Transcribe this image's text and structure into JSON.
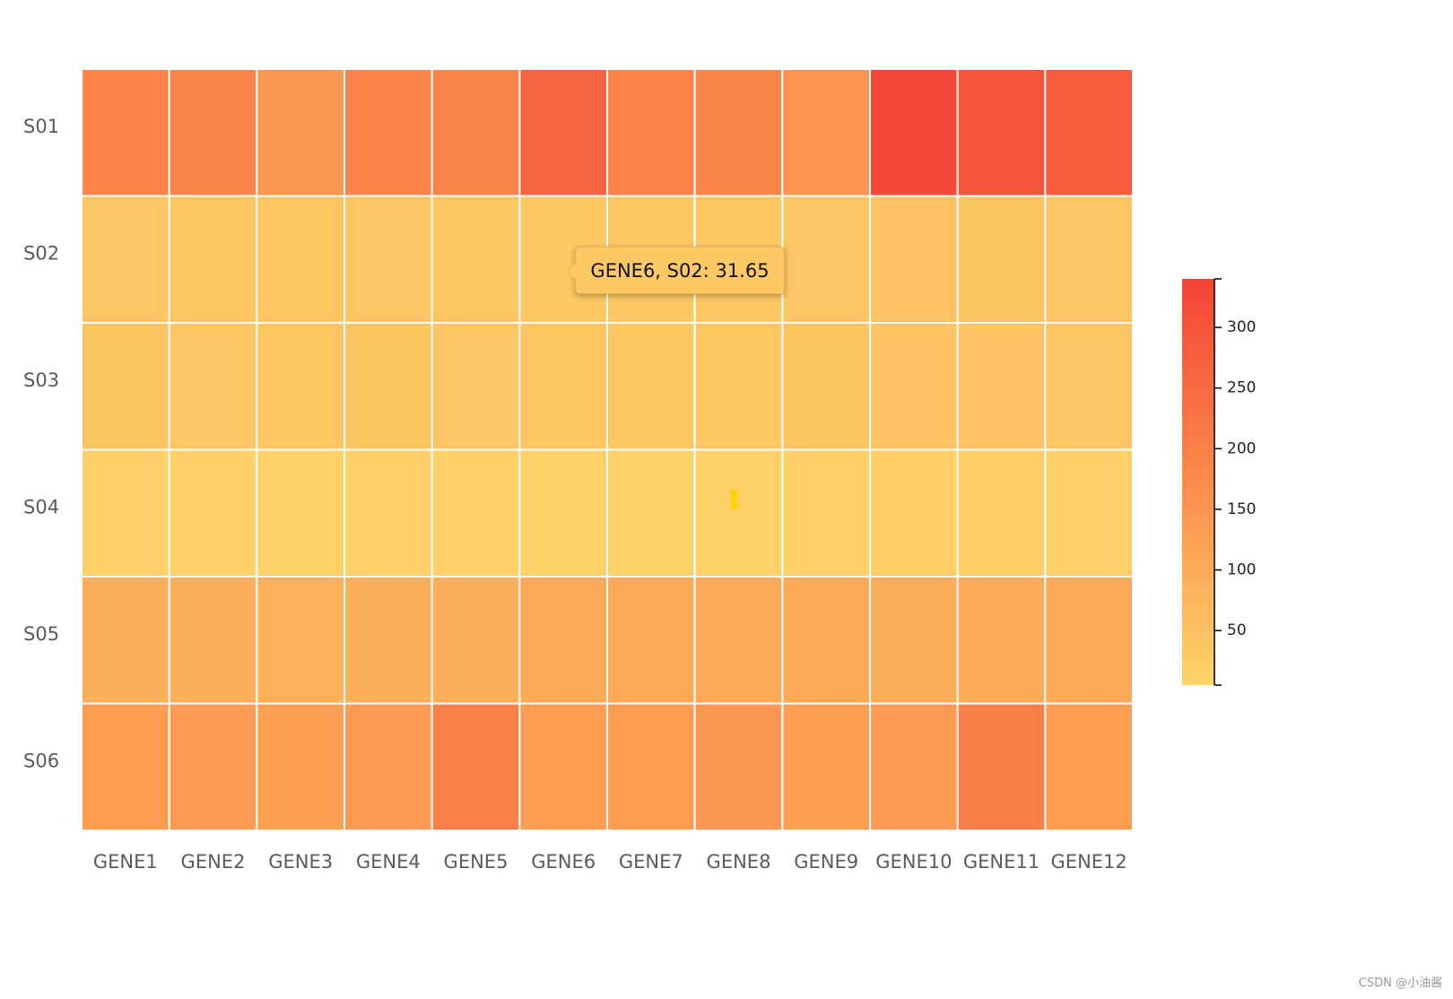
{
  "chart_data": {
    "type": "heatmap",
    "title": "",
    "xlabel": "",
    "ylabel": "",
    "columns": [
      "GENE1",
      "GENE2",
      "GENE3",
      "GENE4",
      "GENE5",
      "GENE6",
      "GENE7",
      "GENE8",
      "GENE9",
      "GENE10",
      "GENE11",
      "GENE12"
    ],
    "rows": [
      "S01",
      "S02",
      "S03",
      "S04",
      "S05",
      "S06"
    ],
    "values": [
      [
        190,
        188,
        150,
        192,
        188,
        262,
        192,
        186,
        152,
        330,
        302,
        278
      ],
      [
        40,
        38,
        37,
        40,
        38,
        31.65,
        35,
        36,
        40,
        45,
        42,
        40
      ],
      [
        42,
        40,
        38,
        43,
        40,
        38,
        36,
        38,
        42,
        45,
        44,
        40
      ],
      [
        15,
        14,
        12,
        15,
        14,
        12,
        11,
        12,
        15,
        17,
        16,
        14
      ],
      [
        92,
        90,
        88,
        92,
        90,
        102,
        104,
        106,
        102,
        96,
        100,
        102
      ],
      [
        132,
        136,
        128,
        138,
        200,
        134,
        134,
        146,
        128,
        138,
        202,
        134
      ]
    ],
    "colorscale": {
      "min": 5,
      "max": 340,
      "low_color": "#fed469",
      "mid_color": "#fb8c4b",
      "high_color": "#f44336"
    },
    "legend": {
      "position": "right",
      "ticks": [
        50,
        100,
        150,
        200,
        250,
        300
      ]
    },
    "grid_lines": "white",
    "tooltip": {
      "text": "GENE6, S02: 31.65"
    }
  },
  "watermark": "CSDN @小油酱"
}
